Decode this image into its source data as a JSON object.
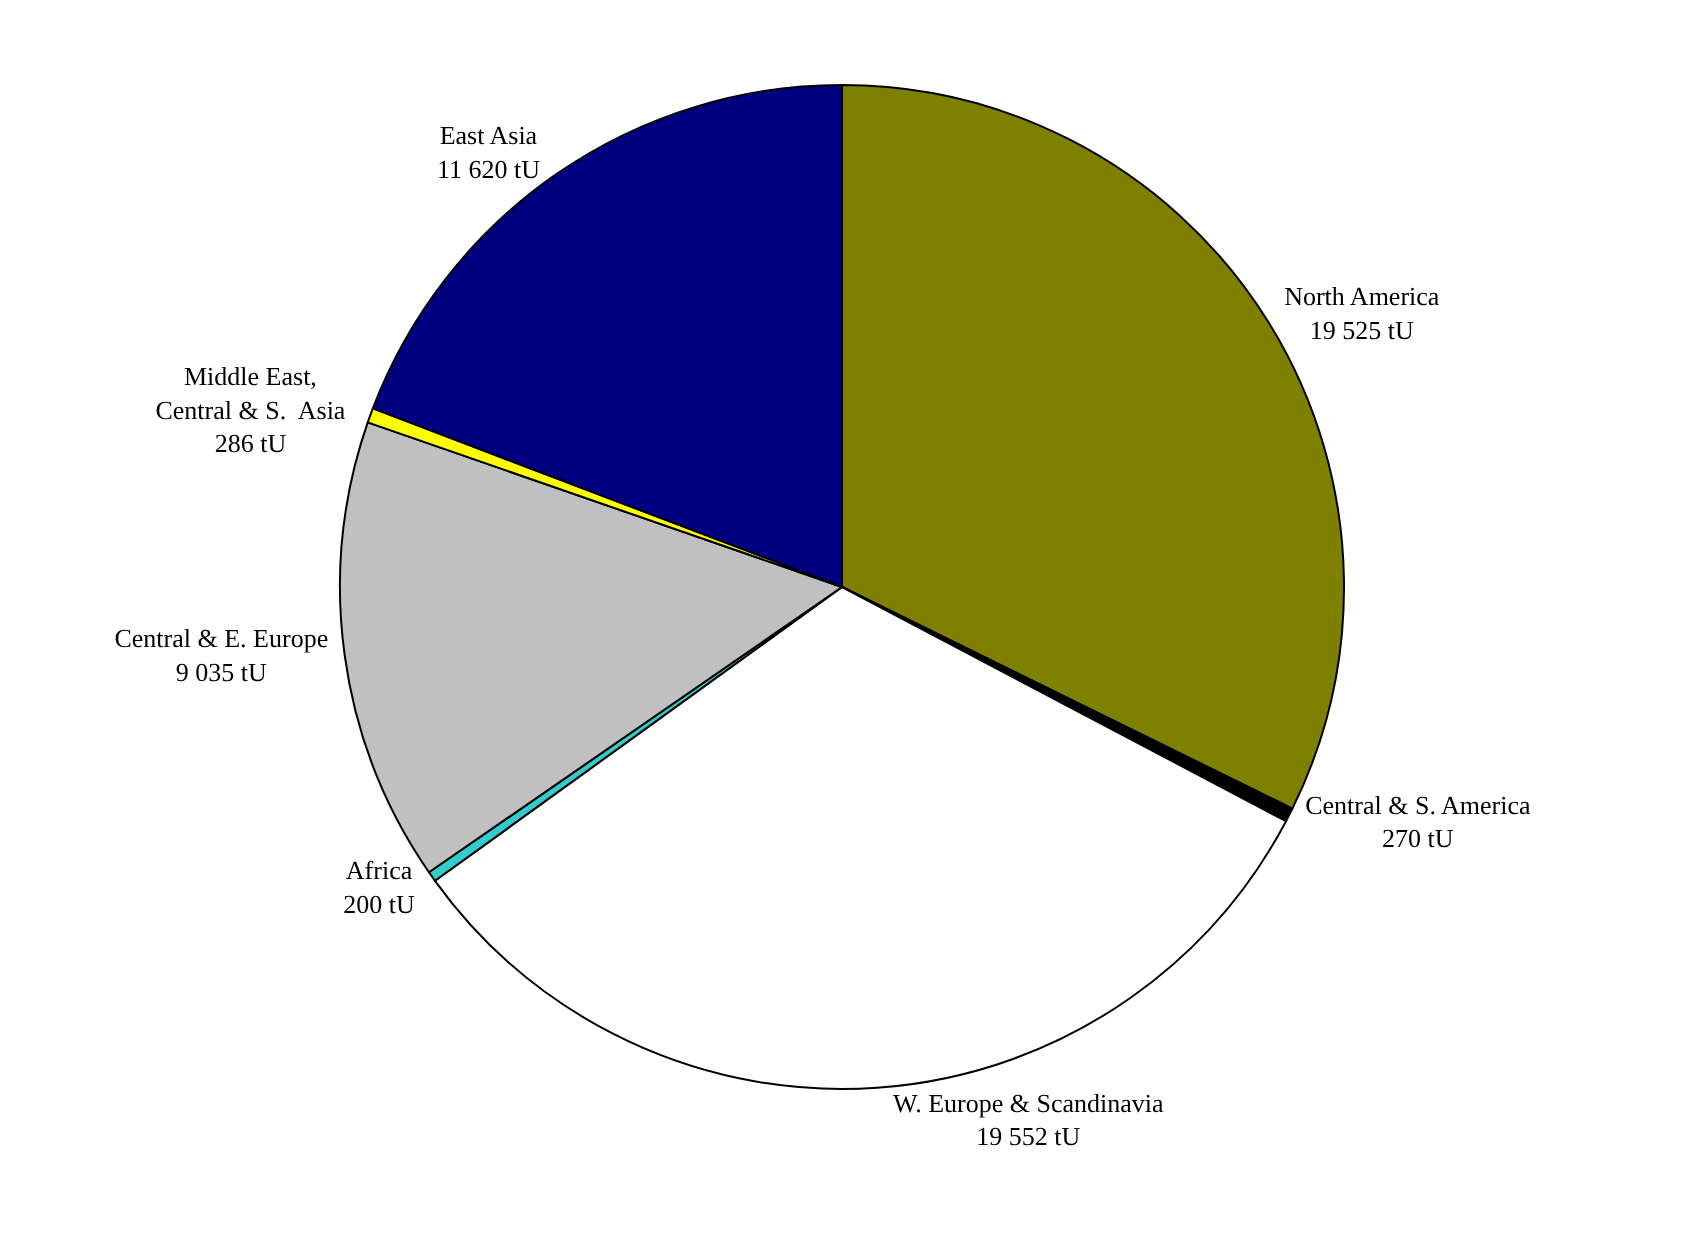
{
  "chart_data": {
    "type": "pie",
    "categories": [
      "North America",
      "Central & S. America",
      "W. Europe & Scandinavia",
      "Africa",
      "Central & E. Europe",
      "Middle East,\nCentral & S.  Asia",
      "East Asia"
    ],
    "values": [
      19525,
      270,
      19552,
      200,
      9035,
      286,
      11620
    ],
    "value_labels": [
      "19 525 tU",
      "270 tU",
      "19 552 tU",
      "200 tU",
      "9 035 tU",
      "286 tU",
      "11 620 tU"
    ],
    "colors": [
      "#808000",
      "#000000",
      "#ffffff",
      "#33cccc",
      "#c0c0c0",
      "#ffff00",
      "#000080"
    ],
    "legend": false
  }
}
